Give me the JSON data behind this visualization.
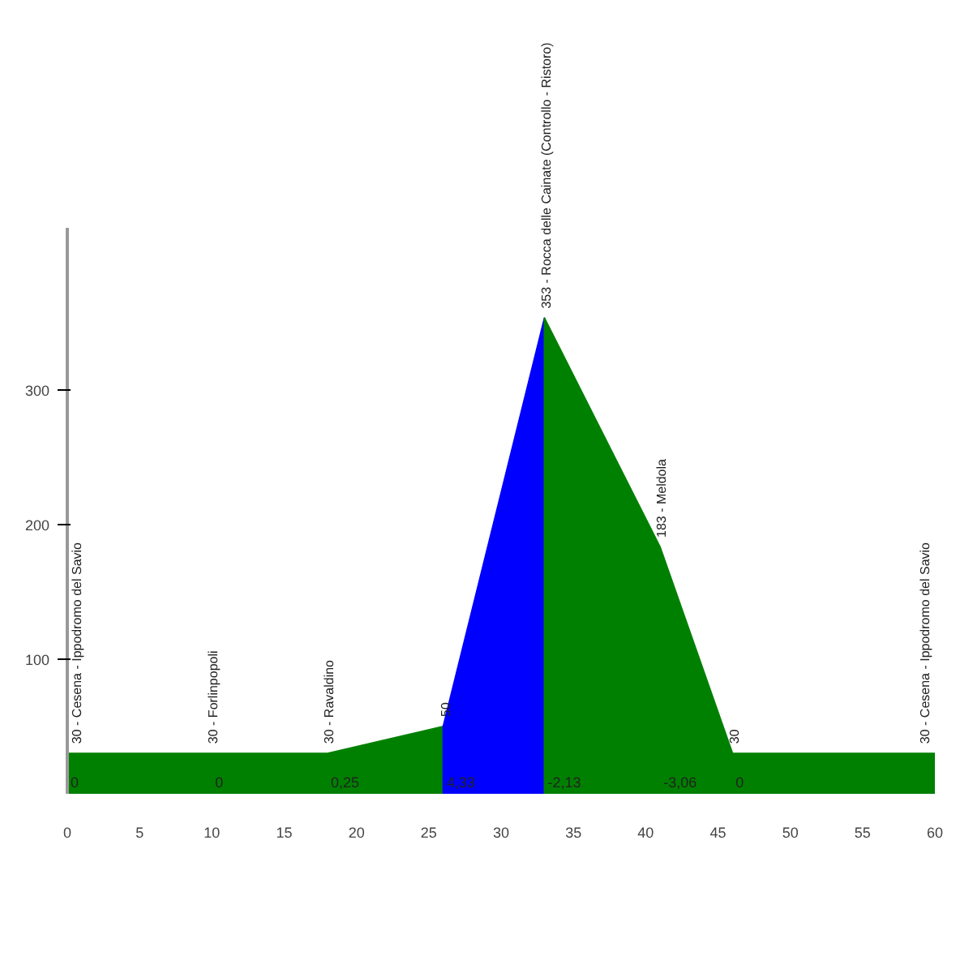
{
  "chart_data": {
    "type": "area",
    "series": [
      {
        "color": "#008000",
        "x": [
          0,
          10,
          18,
          26
        ],
        "values": [
          30,
          30,
          30,
          50
        ],
        "value_labels": [
          "30 - Cesena - Ippodromo del Savio",
          "30 - Forlinpopoli",
          "30 - Ravaldino",
          "50"
        ]
      },
      {
        "color": "#0000ff",
        "x": [
          26,
          33
        ],
        "values": [
          50,
          353
        ],
        "value_labels": [
          null,
          null
        ]
      },
      {
        "color": "#008000",
        "x": [
          33,
          41,
          46,
          60
        ],
        "values": [
          353,
          183,
          30,
          30
        ],
        "value_labels": [
          "353 - Rocca delle Cainate (Controllo - Ristoro)",
          "183 - Meldola",
          "30",
          "30 - Cesena - Ippodromo del Savio"
        ]
      }
    ],
    "annotations": [
      "0",
      "0",
      "0,25",
      "4,33",
      "-2,13",
      "-3,06",
      "0"
    ],
    "xlim": [
      0,
      60
    ],
    "ylim": [
      0,
      420
    ],
    "xticks": [
      0,
      5,
      10,
      15,
      20,
      25,
      30,
      35,
      40,
      45,
      50,
      55,
      60
    ],
    "yticks": [
      100,
      200,
      300
    ],
    "grid": false
  }
}
